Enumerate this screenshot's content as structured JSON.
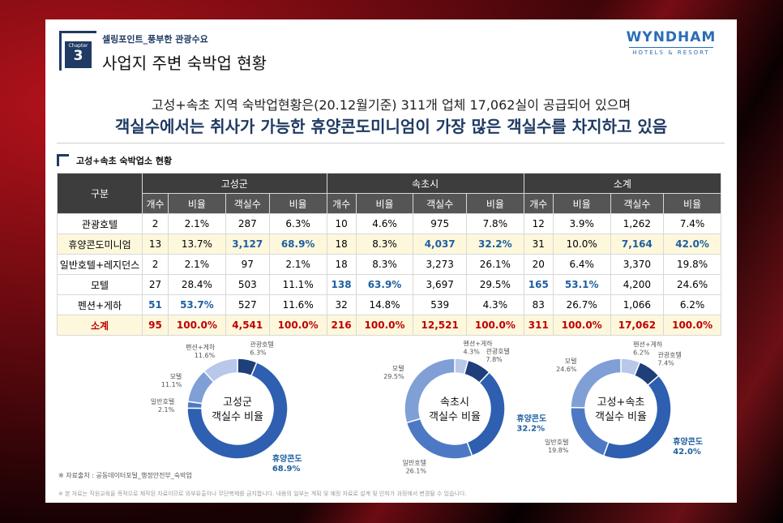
{
  "header": {
    "chapter_label": "Chapter",
    "chapter_num": "3",
    "subtitle": "셀링포인트_풍부한 관광수요",
    "title": "사업지 주변 숙박업 현황",
    "logo_main": "WYNDHAM",
    "logo_sub": "HOTELS & RESORT"
  },
  "headline": "고성+속초 지역 숙박업현황은(20.12월기준) 311개 업체 17,062실이 공급되어 있으며",
  "headline2": "객실수에서는 취사가 가능한 휴양콘도미니엄이 가장 많은 객실수를 차지하고 있음",
  "section_title": "고성+속초 숙박업소 현황",
  "table": {
    "corner": "구분",
    "groups": [
      "고성군",
      "속초시",
      "소계"
    ],
    "subcols": [
      "개수",
      "비율",
      "객실수",
      "비율"
    ],
    "rows": [
      {
        "name": "관광호텔",
        "cells": [
          "2",
          "2.1%",
          "287",
          "6.3%",
          "10",
          "4.6%",
          "975",
          "7.8%",
          "12",
          "3.9%",
          "1,262",
          "7.4%"
        ]
      },
      {
        "name": "휴양콘도미니엄",
        "cells": [
          "13",
          "13.7%",
          "3,127",
          "68.9%",
          "18",
          "8.3%",
          "4,037",
          "32.2%",
          "31",
          "10.0%",
          "7,164",
          "42.0%"
        ]
      },
      {
        "name": "일반호텔+레지던스",
        "cells": [
          "2",
          "2.1%",
          "97",
          "2.1%",
          "18",
          "8.3%",
          "3,273",
          "26.1%",
          "20",
          "6.4%",
          "3,370",
          "19.8%"
        ]
      },
      {
        "name": "모텔",
        "cells": [
          "27",
          "28.4%",
          "503",
          "11.1%",
          "138",
          "63.9%",
          "3,697",
          "29.5%",
          "165",
          "53.1%",
          "4,200",
          "24.6%"
        ]
      },
      {
        "name": "펜션+게하",
        "cells": [
          "51",
          "53.7%",
          "527",
          "11.6%",
          "32",
          "14.8%",
          "539",
          "4.3%",
          "83",
          "26.7%",
          "1,066",
          "6.2%"
        ]
      },
      {
        "name": "소계",
        "cells": [
          "95",
          "100.0%",
          "4,541",
          "100.0%",
          "216",
          "100.0%",
          "12,521",
          "100.0%",
          "311",
          "100.0%",
          "17,062",
          "100.0%"
        ]
      }
    ]
  },
  "chart_data": [
    {
      "type": "pie",
      "title_lines": [
        "고성군",
        "객실수 비율"
      ],
      "categories": [
        "관광호텔",
        "휴양콘도",
        "일반호텔",
        "모텔",
        "펜션+게하"
      ],
      "values": [
        6.3,
        68.9,
        2.1,
        11.1,
        11.6
      ]
    },
    {
      "type": "pie",
      "title_lines": [
        "속초시",
        "객실수 비율"
      ],
      "categories": [
        "펜션+게하",
        "관광호텔",
        "휴양콘도",
        "일반호텔",
        "모텔"
      ],
      "values": [
        4.3,
        7.8,
        32.2,
        26.1,
        29.5
      ]
    },
    {
      "type": "pie",
      "title_lines": [
        "고성+속초",
        "객실수 비율"
      ],
      "categories": [
        "펜션+게하",
        "관광호텔",
        "휴양콘도",
        "일반호텔",
        "모텔"
      ],
      "values": [
        6.2,
        7.4,
        42.0,
        19.8,
        24.6
      ]
    }
  ],
  "colors": {
    "navy": "#1f3a63",
    "red": "#c00000",
    "blue": "#1f5fa0"
  },
  "notes": {
    "source": "※ 자료출처 : 공동데이터포털_행정안전부_숙박업",
    "disclaimer": "※ 본 자료는 직원교육을 목적으로 제작된 자료이므로 외부유출이나 무단복제를 금지합니다. 내용의 일부는 계획 및 예정 자료로 설계 및 인허가 과정에서 변경될 수 있습니다."
  }
}
